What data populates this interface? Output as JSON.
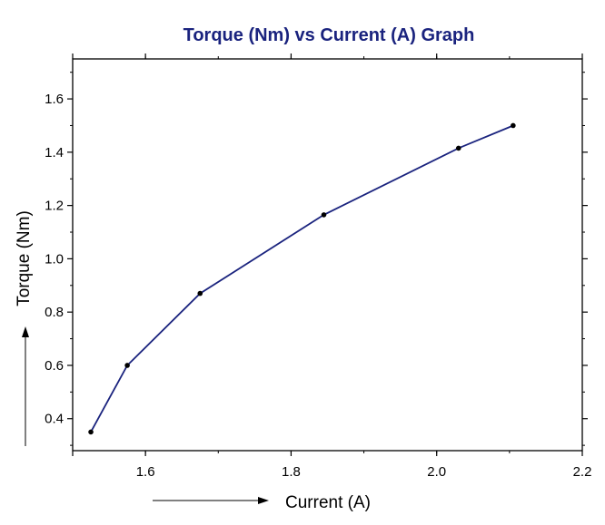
{
  "chart_data": {
    "type": "line",
    "title": "Torque (Nm) vs Current (A) Graph",
    "xlabel": "Current (A)",
    "ylabel": "Torque (Nm)",
    "xlim": [
      1.5,
      2.2
    ],
    "ylim": [
      0.28,
      1.75
    ],
    "x_ticks": [
      1.6,
      1.8,
      2.0,
      2.2
    ],
    "x_tick_labels": [
      "1.6",
      "1.8",
      "2.0",
      "2.2"
    ],
    "y_ticks": [
      0.4,
      0.6,
      0.8,
      1.0,
      1.2,
      1.4,
      1.6
    ],
    "y_tick_labels": [
      "0.4",
      "0.6",
      "0.8",
      "1.0",
      "1.2",
      "1.4",
      "1.6"
    ],
    "grid": false,
    "series": [
      {
        "x": [
          1.525,
          1.575,
          1.675,
          1.845,
          2.03,
          2.105
        ],
        "y": [
          0.35,
          0.6,
          0.87,
          1.165,
          1.415,
          1.5
        ]
      }
    ],
    "line_color": "#1a237e",
    "marker_color": "#000000",
    "title_color": "#1a237e"
  }
}
